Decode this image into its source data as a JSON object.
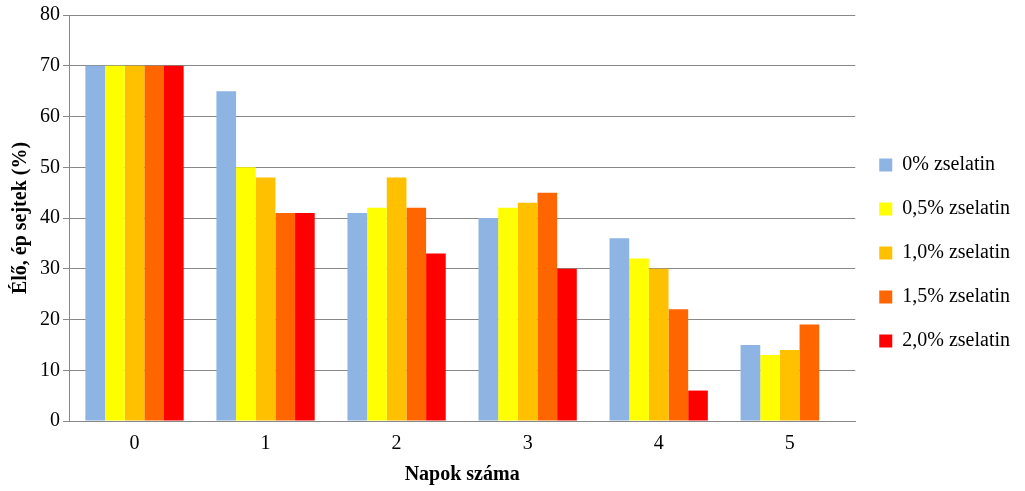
{
  "chart_data": {
    "type": "bar",
    "xlabel": "Napok száma",
    "ylabel": "Élő, ép sejtek (%)",
    "categories": [
      "0",
      "1",
      "2",
      "3",
      "4",
      "5"
    ],
    "series": [
      {
        "name": "0% zselatin",
        "color": "#8db4e2",
        "values": [
          70,
          65,
          41,
          40,
          36,
          15
        ]
      },
      {
        "name": "0,5% zselatin",
        "color": "#ffff00",
        "values": [
          70,
          50,
          42,
          42,
          32,
          13
        ]
      },
      {
        "name": "1,0% zselatin",
        "color": "#ffc000",
        "values": [
          70,
          48,
          48,
          43,
          30,
          14
        ]
      },
      {
        "name": "1,5% zselatin",
        "color": "#ff6600",
        "values": [
          70,
          41,
          42,
          45,
          22,
          19
        ]
      },
      {
        "name": "2,0% zselatin",
        "color": "#ff0000",
        "values": [
          70,
          41,
          33,
          30,
          6,
          null
        ]
      }
    ],
    "ylim": [
      0,
      80
    ],
    "yticks": [
      0,
      10,
      20,
      30,
      40,
      50,
      60,
      70,
      80
    ],
    "grid": "y",
    "legend": "right"
  }
}
